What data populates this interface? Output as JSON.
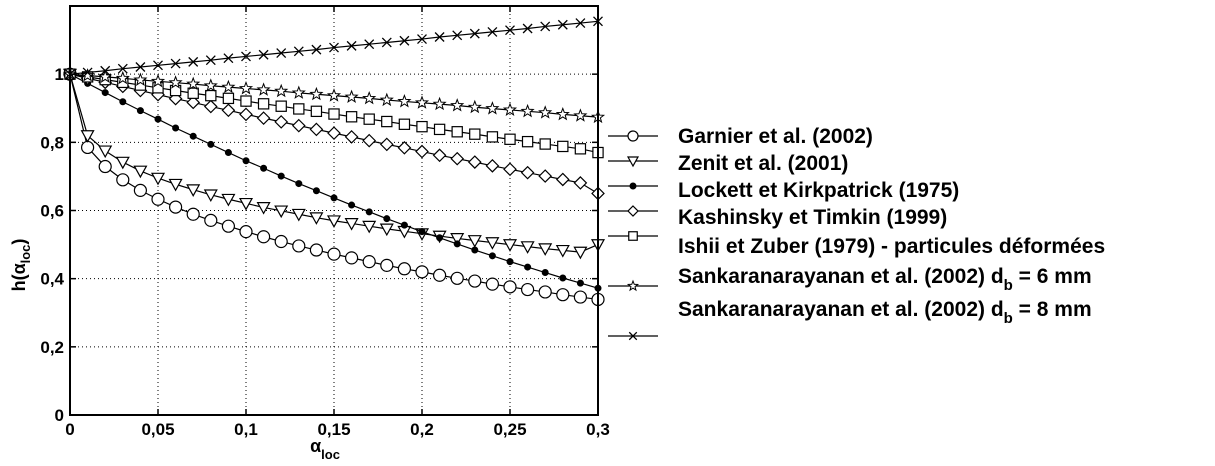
{
  "chart_data": {
    "type": "line",
    "title": "",
    "xlabel": {
      "main": "α",
      "sub": "loc"
    },
    "ylabel": {
      "main": "h(α",
      "sub": "loc",
      "close": ")"
    },
    "xlim": [
      0,
      0.3
    ],
    "ylim": [
      0,
      1.2
    ],
    "grid": true,
    "legend_position": "right",
    "x_ticks": [
      {
        "value": 0,
        "label": "0"
      },
      {
        "value": 0.05,
        "label": "0,05"
      },
      {
        "value": 0.1,
        "label": "0,1"
      },
      {
        "value": 0.15,
        "label": "0,15"
      },
      {
        "value": 0.2,
        "label": "0,2"
      },
      {
        "value": 0.25,
        "label": "0,25"
      },
      {
        "value": 0.3,
        "label": "0,3"
      }
    ],
    "y_ticks": [
      {
        "value": 0,
        "label": "0"
      },
      {
        "value": 0.2,
        "label": "0,2"
      },
      {
        "value": 0.4,
        "label": "0,4"
      },
      {
        "value": 0.6,
        "label": "0,6"
      },
      {
        "value": 0.8,
        "label": "0,8"
      },
      {
        "value": 1.0,
        "label": "1"
      }
    ],
    "x": [
      0,
      0.01,
      0.02,
      0.03,
      0.04,
      0.05,
      0.06,
      0.07,
      0.08,
      0.09,
      0.1,
      0.11,
      0.12,
      0.13,
      0.14,
      0.15,
      0.16,
      0.17,
      0.18,
      0.19,
      0.2,
      0.21,
      0.22,
      0.23,
      0.24,
      0.25,
      0.26,
      0.27,
      0.28,
      0.29,
      0.3
    ],
    "series": [
      {
        "name": "Garnier et al. (2002)",
        "marker": "circle",
        "values": [
          1.0,
          0.785,
          0.729,
          0.69,
          0.659,
          0.633,
          0.61,
          0.589,
          0.571,
          0.554,
          0.538,
          0.523,
          0.509,
          0.496,
          0.484,
          0.472,
          0.461,
          0.45,
          0.439,
          0.429,
          0.42,
          0.41,
          0.401,
          0.393,
          0.384,
          0.376,
          0.368,
          0.361,
          0.353,
          0.346,
          0.339
        ]
      },
      {
        "name": "Zenit et al. (2001)",
        "marker": "triangle-down",
        "values": [
          1.0,
          0.82,
          0.775,
          0.742,
          0.716,
          0.695,
          0.677,
          0.661,
          0.646,
          0.633,
          0.621,
          0.609,
          0.599,
          0.589,
          0.579,
          0.57,
          0.562,
          0.554,
          0.546,
          0.539,
          0.532,
          0.525,
          0.518,
          0.512,
          0.506,
          0.5,
          0.494,
          0.488,
          0.483,
          0.478,
          0.5
        ]
      },
      {
        "name": "Lockett et Kirkpatrick (1975)",
        "marker": "dot",
        "values": [
          1.0,
          0.973,
          0.946,
          0.919,
          0.893,
          0.868,
          0.842,
          0.818,
          0.794,
          0.77,
          0.746,
          0.724,
          0.701,
          0.679,
          0.658,
          0.637,
          0.616,
          0.596,
          0.576,
          0.557,
          0.538,
          0.52,
          0.502,
          0.484,
          0.467,
          0.45,
          0.434,
          0.418,
          0.402,
          0.387,
          0.372
        ]
      },
      {
        "name": "Kashinsky et Timkin (1999)",
        "marker": "diamond",
        "values": [
          1.0,
          0.988,
          0.976,
          0.964,
          0.952,
          0.94,
          0.928,
          0.917,
          0.905,
          0.894,
          0.882,
          0.871,
          0.86,
          0.849,
          0.838,
          0.827,
          0.816,
          0.805,
          0.794,
          0.784,
          0.773,
          0.762,
          0.752,
          0.742,
          0.731,
          0.721,
          0.711,
          0.701,
          0.691,
          0.681,
          0.65
        ]
      },
      {
        "name": "Ishii et Zuber (1979) - particules déformées",
        "marker": "square",
        "values": [
          1.0,
          0.992,
          0.984,
          0.976,
          0.968,
          0.96,
          0.952,
          0.944,
          0.937,
          0.929,
          0.921,
          0.913,
          0.906,
          0.898,
          0.891,
          0.883,
          0.875,
          0.868,
          0.861,
          0.853,
          0.846,
          0.838,
          0.831,
          0.824,
          0.816,
          0.809,
          0.802,
          0.795,
          0.788,
          0.781,
          0.77
        ]
      },
      {
        "name": "Sankaranarayanan et al. (2002) d_b = 6 mm",
        "label_parts": {
          "main": "Sankaranarayanan et al. (2002) d",
          "sub": "b",
          "tail": " = 6 mm"
        },
        "marker": "star",
        "values": [
          1.0,
          0.996,
          0.992,
          0.988,
          0.983,
          0.979,
          0.975,
          0.971,
          0.966,
          0.962,
          0.958,
          0.954,
          0.95,
          0.945,
          0.941,
          0.937,
          0.933,
          0.929,
          0.924,
          0.92,
          0.916,
          0.912,
          0.908,
          0.903,
          0.899,
          0.895,
          0.891,
          0.887,
          0.882,
          0.878,
          0.874
        ]
      },
      {
        "name": "Sankaranarayanan et al. (2002) d_b = 8 mm",
        "label_parts": {
          "main": "Sankaranarayanan et al. (2002) d",
          "sub": "b",
          "tail": " = 8 mm"
        },
        "marker": "cross",
        "values": [
          1.0,
          1.005,
          1.01,
          1.016,
          1.021,
          1.026,
          1.031,
          1.036,
          1.041,
          1.047,
          1.052,
          1.057,
          1.062,
          1.067,
          1.072,
          1.078,
          1.083,
          1.088,
          1.093,
          1.098,
          1.103,
          1.109,
          1.114,
          1.119,
          1.124,
          1.129,
          1.134,
          1.14,
          1.145,
          1.15,
          1.155
        ]
      }
    ]
  }
}
